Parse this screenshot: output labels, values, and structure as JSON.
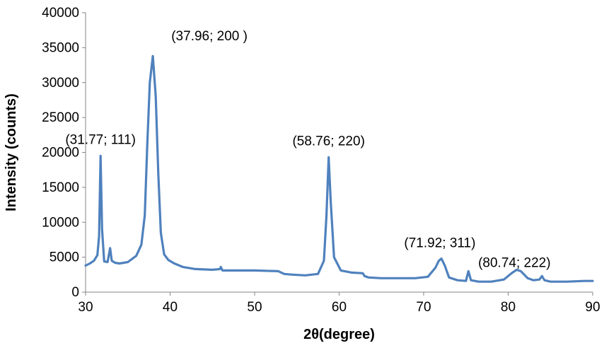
{
  "chart_data": {
    "type": "line",
    "title": "",
    "xlabel": "2θ(degree)",
    "ylabel": "Intensity (counts)",
    "xlim": [
      30,
      90
    ],
    "ylim": [
      0,
      40000
    ],
    "xticks": [
      30,
      40,
      50,
      60,
      70,
      80,
      90
    ],
    "yticks": [
      0,
      5000,
      10000,
      15000,
      20000,
      25000,
      30000,
      35000,
      40000
    ],
    "grid": false,
    "legend": "none",
    "line_color": "#4f81bd",
    "series": [
      {
        "x": [
          30.0,
          30.5,
          31.0,
          31.4,
          31.6,
          31.77,
          31.95,
          32.2,
          32.6,
          32.9,
          33.1,
          33.5,
          34.0,
          35.0,
          36.0,
          36.6,
          37.0,
          37.3,
          37.6,
          37.96,
          38.3,
          38.6,
          38.9,
          39.3,
          39.8,
          40.5,
          41.5,
          43.0,
          45.0,
          45.9,
          46.0,
          46.2,
          47.0,
          50.0,
          52.8,
          53.5,
          54.5,
          56.0,
          57.5,
          58.2,
          58.5,
          58.76,
          59.0,
          59.4,
          60.2,
          61.5,
          62.8,
          63.0,
          63.5,
          65.0,
          67.0,
          69.0,
          70.5,
          71.4,
          71.8,
          72.1,
          72.5,
          73.0,
          74.0,
          75.0,
          75.3,
          75.6,
          76.5,
          78.0,
          79.5,
          80.4,
          81.0,
          81.5,
          82.3,
          83.0,
          83.7,
          84.0,
          84.3,
          85.0,
          87.0,
          89.0,
          90.0
        ],
        "values": [
          3800,
          4100,
          4500,
          5300,
          8000,
          19500,
          9000,
          4400,
          4300,
          6300,
          4500,
          4200,
          4100,
          4300,
          5200,
          6800,
          11000,
          21000,
          30000,
          33800,
          28000,
          17000,
          8500,
          5400,
          4600,
          4100,
          3600,
          3300,
          3200,
          3300,
          3600,
          3100,
          3100,
          3100,
          3000,
          2600,
          2500,
          2400,
          2600,
          4500,
          11000,
          19300,
          13000,
          5000,
          3100,
          2800,
          2700,
          2300,
          2100,
          2000,
          2000,
          2000,
          2200,
          3500,
          4500,
          4800,
          3800,
          2100,
          1700,
          1600,
          3000,
          1700,
          1500,
          1500,
          1800,
          2700,
          3200,
          3000,
          2000,
          1700,
          1800,
          2300,
          1700,
          1500,
          1500,
          1600,
          1600
        ]
      }
    ],
    "annotations": [
      {
        "text": "(31.77; 111)",
        "x": 31.77,
        "y": 19500
      },
      {
        "text": "(37.96; 200 )",
        "x": 37.96,
        "y": 33800
      },
      {
        "text": "(58.76; 220)",
        "x": 58.76,
        "y": 19300
      },
      {
        "text": "(71.92; 311)",
        "x": 71.92,
        "y": 4800
      },
      {
        "text": "(80.74; 222)",
        "x": 80.74,
        "y": 3200
      }
    ]
  }
}
